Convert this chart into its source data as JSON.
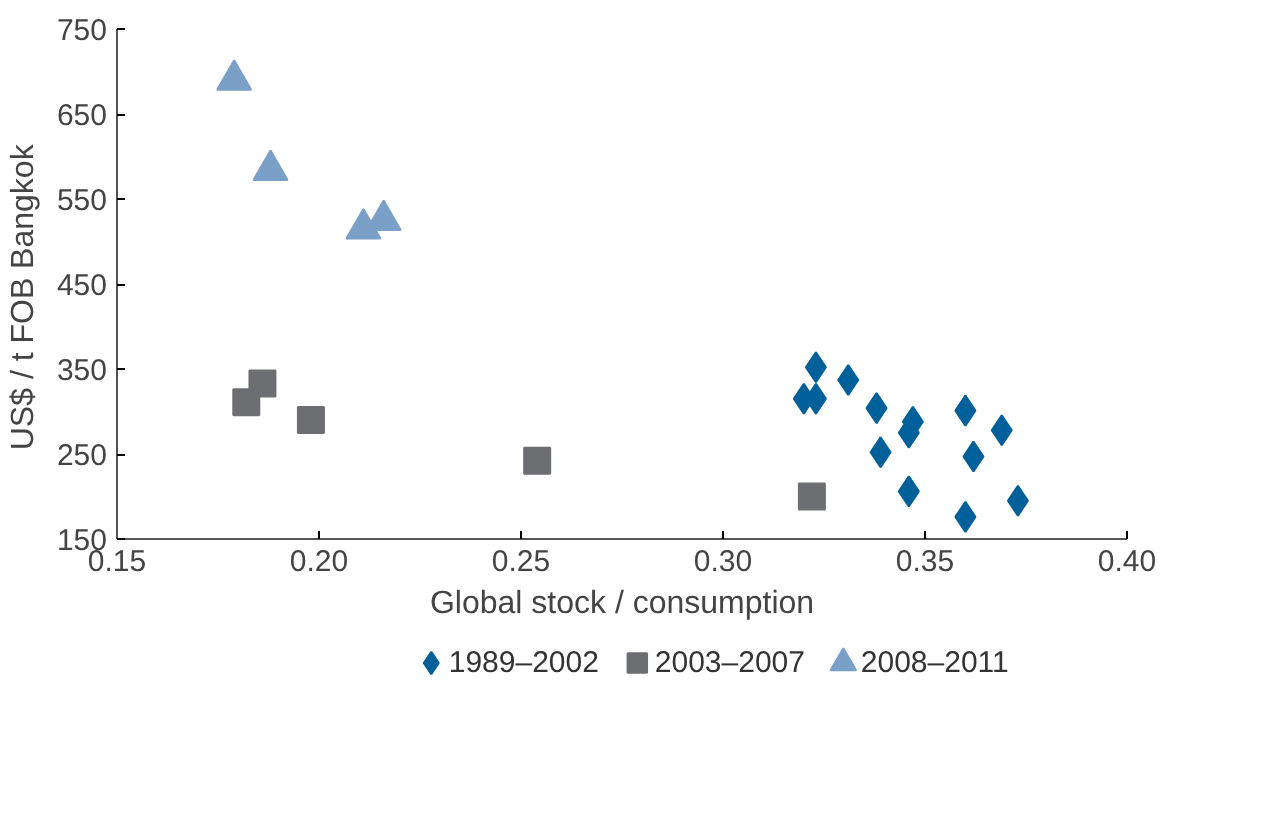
{
  "chart_data": {
    "type": "scatter",
    "xlabel": "Global stock / consumption",
    "ylabel": "US$ / t    FOB Bangkok",
    "xlim": [
      0.15,
      0.4
    ],
    "xticks": [
      {
        "value": 0.15,
        "label": "0.15"
      },
      {
        "value": 0.2,
        "label": "0.20"
      },
      {
        "value": 0.25,
        "label": "0.25"
      },
      {
        "value": 0.3,
        "label": "0.30"
      },
      {
        "value": 0.35,
        "label": "0.35"
      },
      {
        "value": 0.4,
        "label": "0.40"
      }
    ],
    "ylim": [
      150,
      750
    ],
    "yticks": [
      150,
      250,
      350,
      450,
      550,
      650,
      750
    ],
    "grid": false,
    "legend": "bottom",
    "series": [
      {
        "name": "1989–2002",
        "color": "#00609a",
        "marker": "diamond",
        "x": [
          0.323,
          0.32,
          0.323,
          0.331,
          0.338,
          0.347,
          0.346,
          0.339,
          0.346,
          0.36,
          0.369,
          0.362,
          0.36,
          0.373
        ],
        "values": [
          352,
          315,
          315,
          337,
          304,
          288,
          275,
          252,
          206,
          301,
          278,
          247,
          176,
          195
        ]
      },
      {
        "name": "2003–2007",
        "color": "#6d6e71",
        "marker": "square",
        "x": [
          0.186,
          0.182,
          0.198,
          0.254,
          0.322
        ],
        "values": [
          333,
          311,
          290,
          242,
          200
        ]
      },
      {
        "name": "2008–2011",
        "color": "#7aa0c8",
        "marker": "triangle",
        "x": [
          0.179,
          0.188,
          0.211,
          0.216
        ],
        "values": [
          690,
          584,
          515,
          525
        ]
      }
    ]
  }
}
